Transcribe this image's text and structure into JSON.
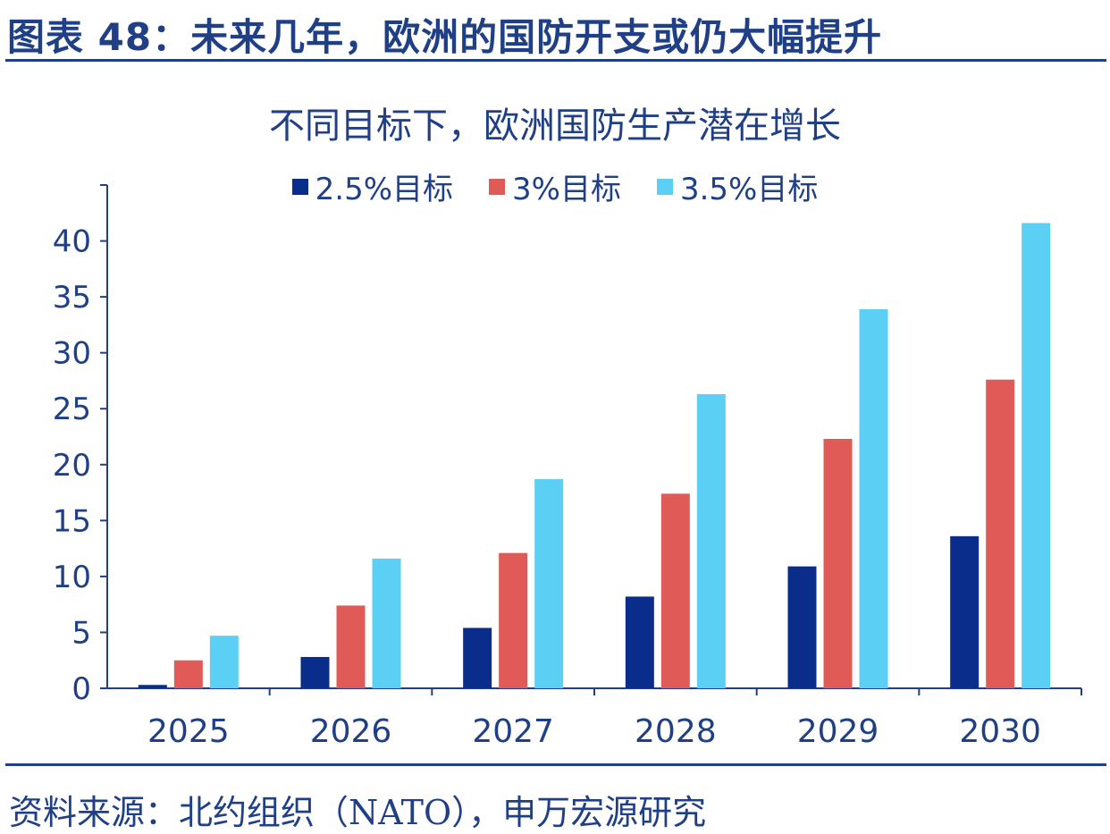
{
  "figure": {
    "title": "图表 48：未来几年，欧洲的国防开支或仍大幅提升",
    "source": "资料来源：北约组织（NATO），申万宏源研究"
  },
  "chart_data": {
    "type": "bar",
    "title": "不同目标下，欧洲国防生产潜在增长",
    "xlabel": "",
    "ylabel": "",
    "categories": [
      "2025",
      "2026",
      "2027",
      "2028",
      "2029",
      "2030"
    ],
    "series": [
      {
        "name": "2.5%目标",
        "color": "#0a2d8c",
        "values": [
          0.3,
          2.8,
          5.4,
          8.2,
          10.9,
          13.6
        ]
      },
      {
        "name": "3%目标",
        "color": "#e05b57",
        "values": [
          2.5,
          7.4,
          12.1,
          17.4,
          22.3,
          27.6
        ]
      },
      {
        "name": "3.5%目标",
        "color": "#5ccff5",
        "values": [
          4.7,
          11.6,
          18.7,
          26.3,
          33.9,
          41.6
        ]
      }
    ],
    "yticks": [
      0,
      5,
      10,
      15,
      20,
      25,
      30,
      35,
      40
    ],
    "ytick_labels": [
      "0",
      "5",
      "10",
      "15",
      "20",
      "25",
      "30",
      "35",
      "40"
    ],
    "ylim": [
      0,
      45
    ],
    "grid": false,
    "legend_position": "top-center"
  }
}
